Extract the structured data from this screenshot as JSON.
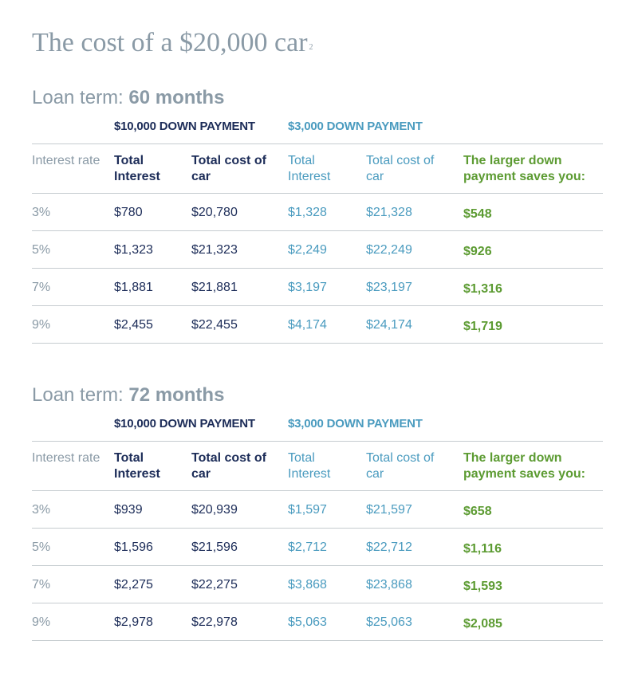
{
  "title": {
    "text": "The cost of a $20,000 car",
    "footnote": "2"
  },
  "colors": {
    "navy": "#1c2c58",
    "teal": "#4a9bbf",
    "green": "#5c9b32",
    "gray": "#8a9aa6"
  },
  "header": {
    "group_10k": "$10,000 DOWN PAYMENT",
    "group_3k": "$3,000 DOWN PAYMENT",
    "col_rate": "Interest rate",
    "col_total_interest": "Total Interest",
    "col_total_cost": "Total cost of car",
    "col_savings": "The larger down payment saves you:"
  },
  "sections": [
    {
      "term_prefix": "Loan term:",
      "term_value": "60 months",
      "rows": [
        {
          "rate": "3%",
          "interest_10k": "$780",
          "cost_10k": "$20,780",
          "interest_3k": "$1,328",
          "cost_3k": "$21,328",
          "savings": "$548"
        },
        {
          "rate": "5%",
          "interest_10k": "$1,323",
          "cost_10k": "$21,323",
          "interest_3k": "$2,249",
          "cost_3k": "$22,249",
          "savings": "$926"
        },
        {
          "rate": "7%",
          "interest_10k": "$1,881",
          "cost_10k": "$21,881",
          "interest_3k": "$3,197",
          "cost_3k": "$23,197",
          "savings": "$1,316"
        },
        {
          "rate": "9%",
          "interest_10k": "$2,455",
          "cost_10k": "$22,455",
          "interest_3k": "$4,174",
          "cost_3k": "$24,174",
          "savings": "$1,719"
        }
      ]
    },
    {
      "term_prefix": "Loan term:",
      "term_value": "72 months",
      "rows": [
        {
          "rate": "3%",
          "interest_10k": "$939",
          "cost_10k": "$20,939",
          "interest_3k": "$1,597",
          "cost_3k": "$21,597",
          "savings": "$658"
        },
        {
          "rate": "5%",
          "interest_10k": "$1,596",
          "cost_10k": "$21,596",
          "interest_3k": "$2,712",
          "cost_3k": "$22,712",
          "savings": "$1,116"
        },
        {
          "rate": "7%",
          "interest_10k": "$2,275",
          "cost_10k": "$22,275",
          "interest_3k": "$3,868",
          "cost_3k": "$23,868",
          "savings": "$1,593"
        },
        {
          "rate": "9%",
          "interest_10k": "$2,978",
          "cost_10k": "$22,978",
          "interest_3k": "$5,063",
          "cost_3k": "$25,063",
          "savings": "$2,085"
        }
      ]
    }
  ]
}
